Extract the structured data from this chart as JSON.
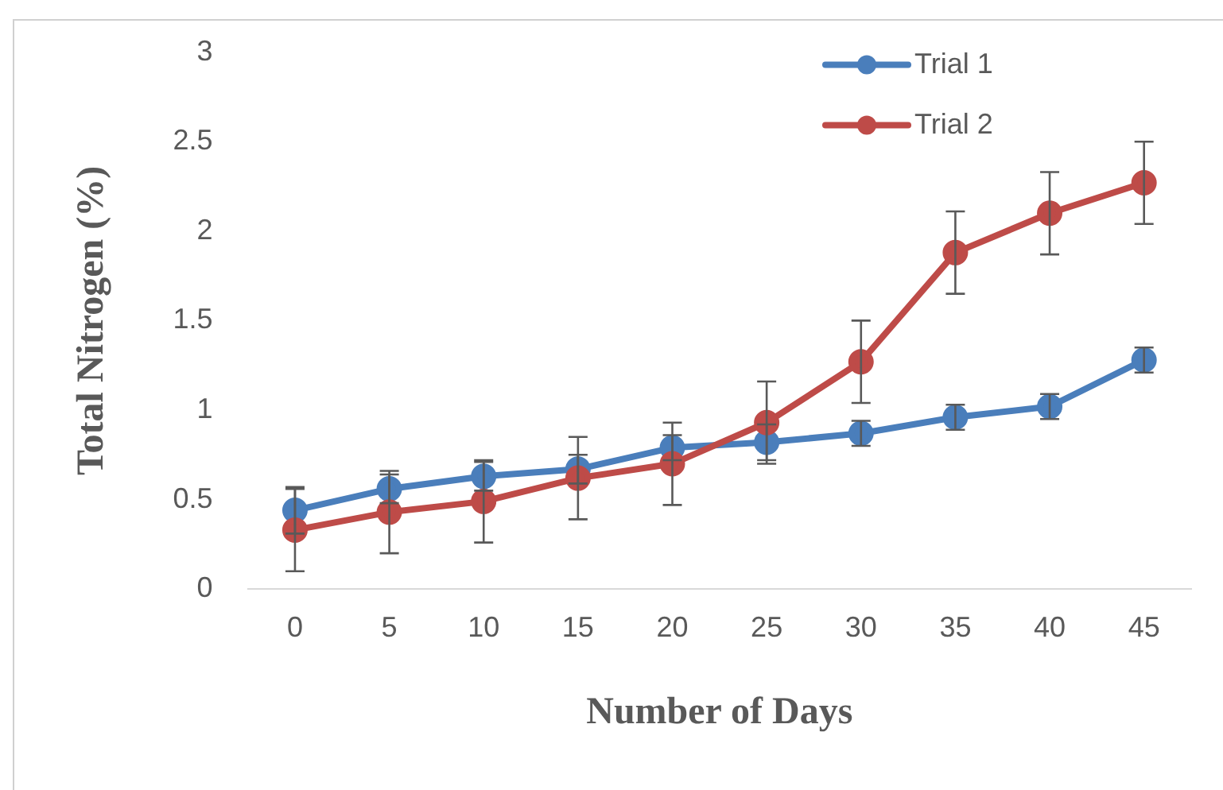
{
  "chart_data": {
    "type": "line",
    "xlabel": "Number of Days",
    "ylabel": "Total Nitrogen (%)",
    "categories": [
      "0",
      "5",
      "10",
      "15",
      "20",
      "25",
      "30",
      "35",
      "40",
      "45"
    ],
    "series": [
      {
        "name": "Trial 1",
        "color": "#4a7ebb",
        "values": [
          0.44,
          0.56,
          0.63,
          0.67,
          0.79,
          0.82,
          0.87,
          0.96,
          1.02,
          1.28
        ],
        "errors": [
          0.13,
          0.08,
          0.08,
          0.08,
          0.07,
          0.1,
          0.07,
          0.07,
          0.07,
          0.07
        ]
      },
      {
        "name": "Trial 2",
        "color": "#be4b48",
        "values": [
          0.33,
          0.43,
          0.49,
          0.62,
          0.7,
          0.93,
          1.27,
          1.88,
          2.1,
          2.27
        ],
        "errors": [
          0.23,
          0.23,
          0.23,
          0.23,
          0.23,
          0.23,
          0.23,
          0.23,
          0.23,
          0.23
        ]
      }
    ],
    "ylim": [
      0,
      3
    ],
    "yticks": [
      0,
      0.5,
      1,
      1.5,
      2,
      2.5,
      3
    ],
    "grid": false,
    "legend": "top right",
    "marker": "circle",
    "line_style": "solid"
  }
}
